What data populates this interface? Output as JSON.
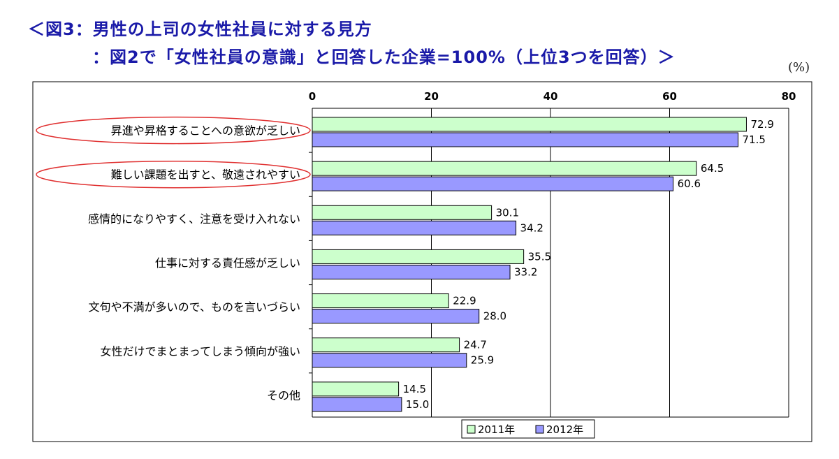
{
  "title": {
    "line1": "＜図3：男性の上司の女性社員に対する見方",
    "line2": "：図2で「女性社員の意識」と回答した企業=100%（上位3つを回答）＞",
    "unit": "(%)"
  },
  "colors": {
    "series2011": "#ccffcc",
    "series2012": "#9999ff",
    "highlight": "#e03030",
    "bar_stroke": "#000000",
    "grid": "#000000"
  },
  "chart_data": {
    "type": "bar",
    "orientation": "horizontal",
    "categories": [
      "昇進や昇格することへの意欲が乏しい",
      "難しい課題を出すと、敬遠されやすい",
      "感情的になりやすく、注意を受け入れない",
      "仕事に対する責任感が乏しい",
      "文句や不満が多いので、ものを言いづらい",
      "女性だけでまとまってしまう傾向が強い",
      "その他"
    ],
    "highlighted_categories": [
      0,
      1
    ],
    "series": [
      {
        "name": "2011年",
        "values": [
          72.9,
          64.5,
          30.1,
          35.5,
          22.9,
          24.7,
          14.5
        ],
        "labels": [
          "72.9",
          "64.5",
          "30.1",
          "35.5",
          "22.9",
          "24.7",
          "14.5"
        ]
      },
      {
        "name": "2012年",
        "values": [
          71.5,
          60.6,
          34.2,
          33.2,
          28.0,
          25.9,
          15.0
        ],
        "labels": [
          "71.5",
          "60.6",
          "34.2",
          "33.2",
          "28.0",
          "25.9",
          "15.0"
        ]
      }
    ],
    "xlim": [
      0,
      80
    ],
    "ticks": [
      "0",
      "20",
      "40",
      "60",
      "80"
    ],
    "tick_values": [
      0,
      20,
      40,
      60,
      80
    ],
    "grid": true,
    "legend_position": "bottom"
  }
}
